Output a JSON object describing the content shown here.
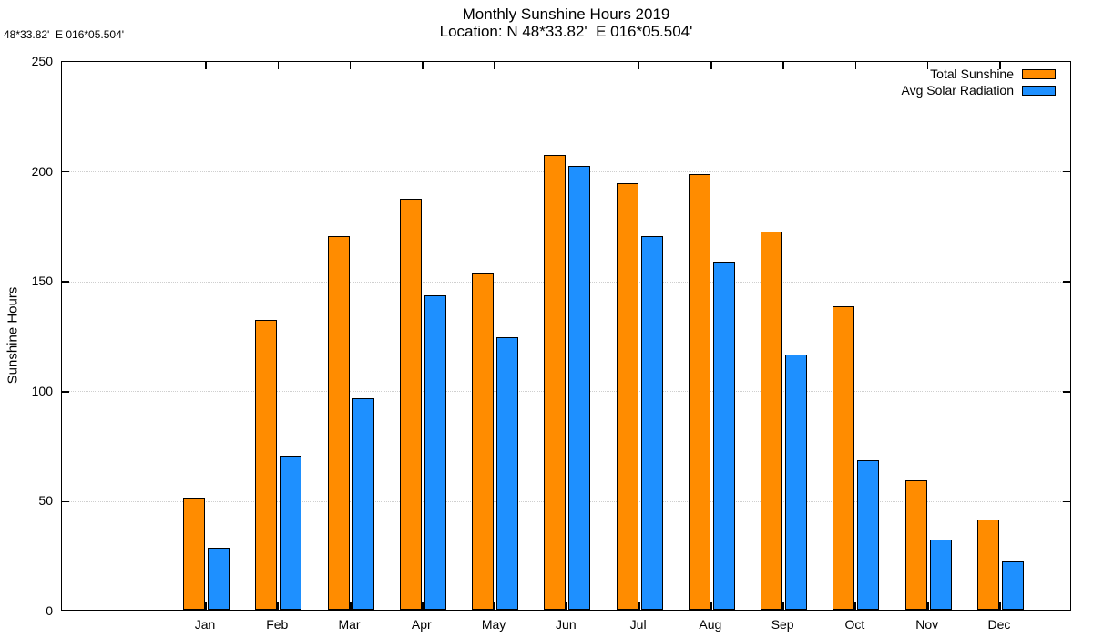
{
  "header": {
    "corner_text": "48*33.82'  E 016*05.504'",
    "title": "Monthly Sunshine Hours 2019",
    "subtitle": "Location: N 48*33.82'  E 016*05.504'"
  },
  "chart_data": {
    "type": "bar",
    "title": "Monthly Sunshine Hours 2019",
    "subtitle": "Location: N 48*33.82'  E 016*05.504'",
    "xlabel": "",
    "ylabel": "Sunshine Hours",
    "ylim": [
      0,
      250
    ],
    "yticks": [
      0,
      50,
      100,
      150,
      200,
      250
    ],
    "grid": "horizontal-dotted",
    "legend_position": "top-right-inside",
    "categories": [
      "Jan",
      "Feb",
      "Mar",
      "Apr",
      "May",
      "Jun",
      "Jul",
      "Aug",
      "Sep",
      "Oct",
      "Nov",
      "Dec"
    ],
    "series": [
      {
        "name": "Total Sunshine",
        "color": "#FF8C00",
        "values": [
          51,
          132,
          170,
          187,
          153,
          207,
          194,
          198,
          172,
          138,
          59,
          41
        ]
      },
      {
        "name": "Avg Solar Radiation",
        "color": "#1E90FF",
        "values": [
          28,
          70,
          96,
          143,
          124,
          202,
          170,
          158,
          116,
          68,
          32,
          22
        ]
      }
    ]
  },
  "colors": {
    "bar_total_sunshine": "#FF8C00",
    "bar_avg_solar_radiation": "#1E90FF",
    "axis": "#000000",
    "gridline": "#cfcfcf",
    "background": "#ffffff"
  }
}
